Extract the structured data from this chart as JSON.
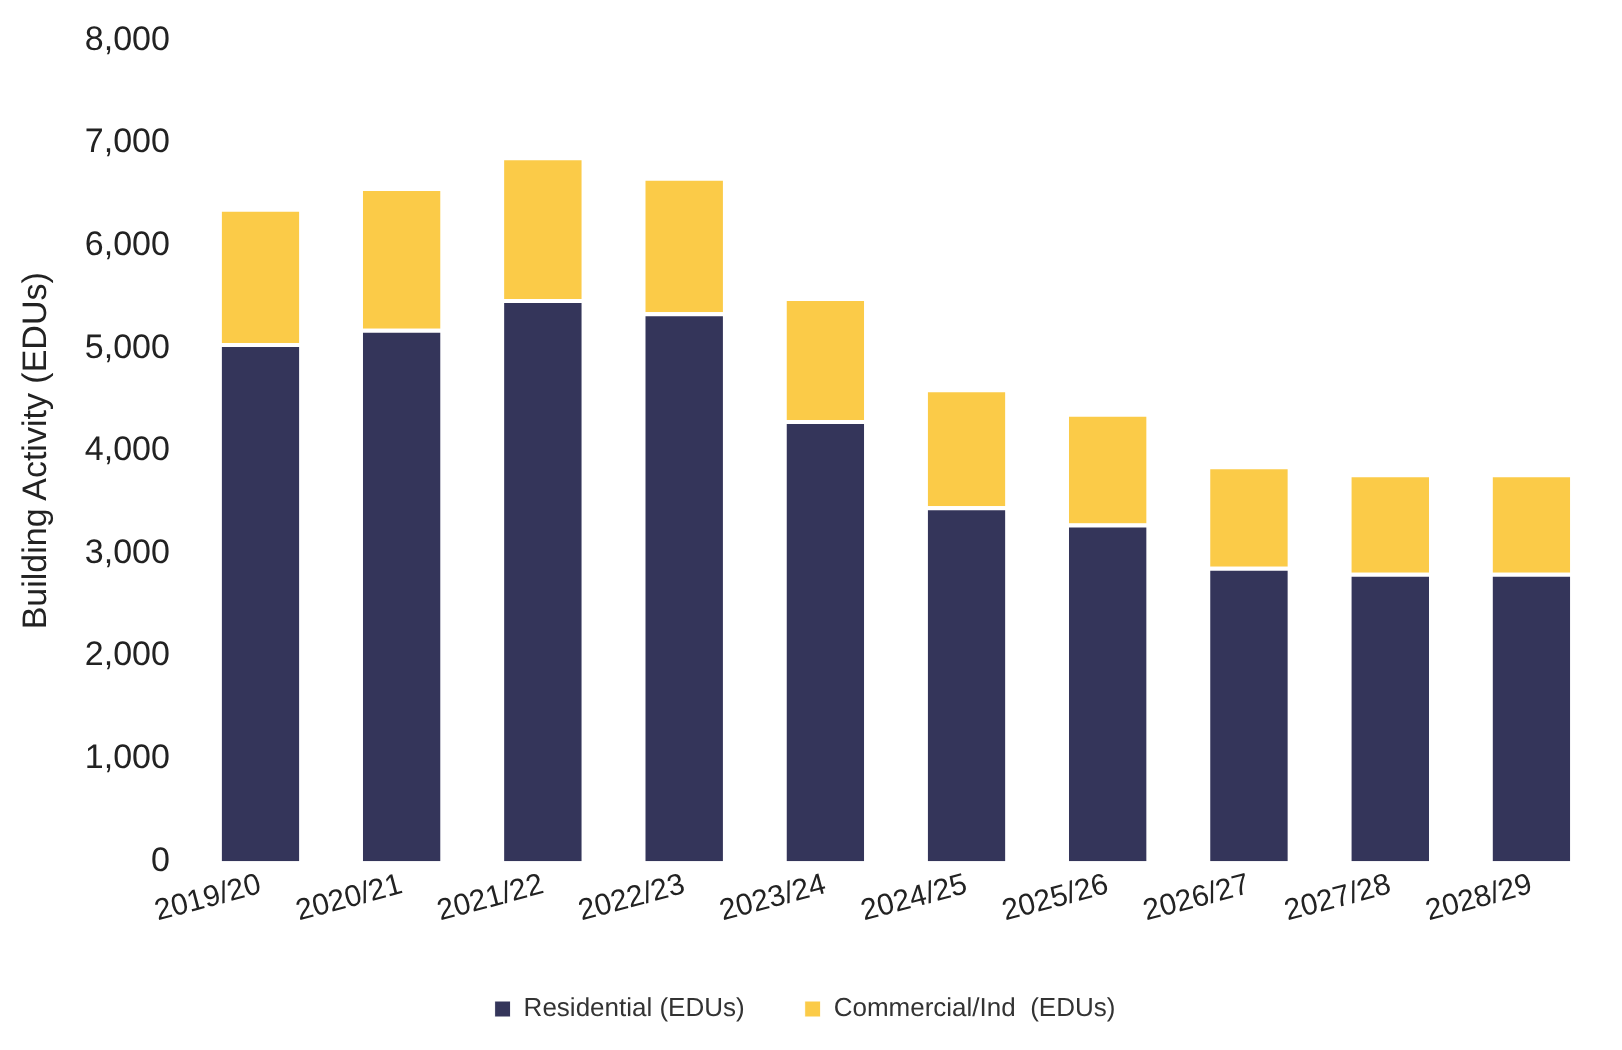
{
  "chart_data": {
    "type": "bar",
    "ylabel": "Building Activity (EDUs)",
    "categories": [
      "2019/20",
      "2020/21",
      "2021/22",
      "2022/23",
      "2023/24",
      "2024/25",
      "2025/26",
      "2026/27",
      "2027/28",
      "2028/29"
    ],
    "series": [
      {
        "name": "Residential (EDUs)",
        "color": "#34355a",
        "values": [
          5050,
          5190,
          5480,
          5350,
          4300,
          3460,
          3290,
          2870,
          2810,
          2810
        ]
      },
      {
        "name": "Commercial/Ind  (EDUs)",
        "color": "#fbcb48",
        "values": [
          1320,
          1380,
          1390,
          1320,
          1200,
          1150,
          1080,
          990,
          970,
          970
        ]
      }
    ],
    "stacked": true,
    "ylim": [
      0,
      8000
    ],
    "yticks": [
      0,
      {
        "value": 1000,
        "label": "1,000"
      },
      {
        "value": 2000,
        "label": "2,000"
      },
      {
        "value": 3000,
        "label": "3,000"
      },
      {
        "value": 4000,
        "label": "4,000"
      },
      {
        "value": 5000,
        "label": "5,000"
      },
      {
        "value": 6000,
        "label": "6,000"
      },
      {
        "value": 7000,
        "label": "7,000"
      },
      {
        "value": 8000,
        "label": "8,000"
      }
    ],
    "grid": false,
    "legend": "bottom"
  }
}
